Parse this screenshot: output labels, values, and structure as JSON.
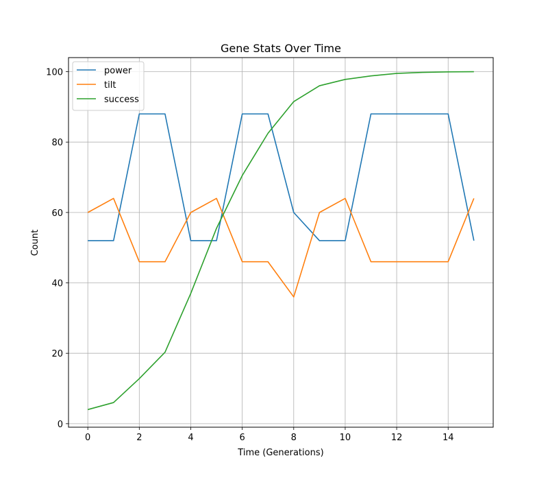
{
  "chart_data": {
    "type": "line",
    "title": "Gene Stats Over Time",
    "xlabel": "Time (Generations)",
    "ylabel": "Count",
    "x": [
      0,
      1,
      2,
      3,
      4,
      5,
      6,
      7,
      8,
      9,
      10,
      11,
      12,
      13,
      14,
      15
    ],
    "xlim": [
      -0.75,
      15.75
    ],
    "ylim": [
      -1,
      104
    ],
    "xticks": [
      0,
      2,
      4,
      6,
      8,
      10,
      12,
      14
    ],
    "yticks": [
      0,
      20,
      40,
      60,
      80,
      100
    ],
    "grid": true,
    "legend_position": "upper-left",
    "series": [
      {
        "name": "power",
        "color": "#1f77b4",
        "values": [
          52,
          52,
          88,
          88,
          52,
          52,
          88,
          88,
          60,
          52,
          52,
          88,
          88,
          88,
          88,
          52
        ]
      },
      {
        "name": "tilt",
        "color": "#ff7f0e",
        "values": [
          60,
          64,
          46,
          46,
          60,
          64,
          46,
          46,
          36,
          60,
          64,
          46,
          46,
          46,
          46,
          64
        ]
      },
      {
        "name": "success",
        "color": "#2ca02c",
        "values": [
          4,
          6,
          12.8,
          20.3,
          37,
          55.5,
          70.5,
          82.5,
          91.5,
          96,
          97.8,
          98.8,
          99.5,
          99.8,
          99.95,
          100
        ]
      }
    ]
  }
}
